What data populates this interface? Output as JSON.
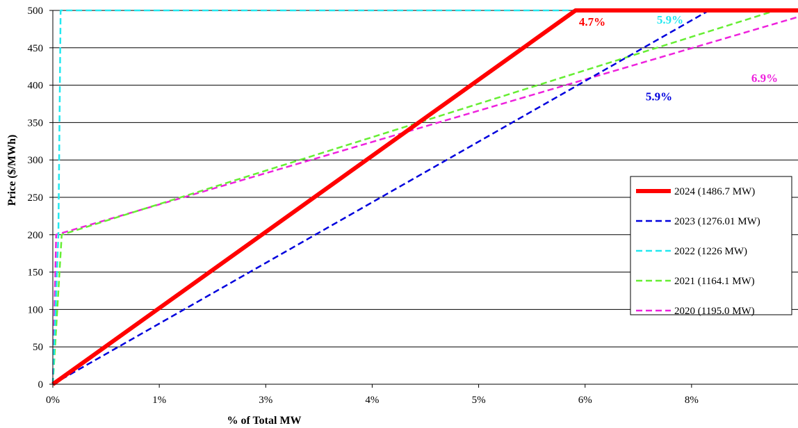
{
  "chart_data": {
    "type": "line",
    "xlabel": "% of Total MW",
    "ylabel": "Price ($/MWh)",
    "x_ticks": [
      "0%",
      "1%",
      "3%",
      "4%",
      "5%",
      "6%",
      "8%"
    ],
    "y_ticks": [
      "0",
      "50",
      "100",
      "150",
      "200",
      "250",
      "300",
      "350",
      "400",
      "450",
      "500"
    ],
    "xlim": [
      0,
      6.7
    ],
    "ylim": [
      0,
      500
    ],
    "grid": "horizontal",
    "legend_position": "right",
    "series": [
      {
        "name": "2024 (1486.7 MW)",
        "color": "#ff0000",
        "dash": "solid",
        "width": 6,
        "x": [
          0,
          4.7,
          6.7
        ],
        "y": [
          0,
          500,
          500
        ]
      },
      {
        "name": "2023 (1276.01 MW)",
        "color": "#0000dd",
        "dash": "dashed",
        "width": 2.5,
        "x": [
          0,
          5.9,
          6.7
        ],
        "y": [
          0,
          500,
          500
        ]
      },
      {
        "name": "2022 (1226 MW)",
        "color": "#22e8f0",
        "dash": "dashed",
        "width": 2.5,
        "x": [
          0,
          0.05,
          0.07,
          6.7
        ],
        "y": [
          0,
          200,
          500,
          500
        ]
      },
      {
        "name": "2021 (1164.1 MW)",
        "color": "#66ee33",
        "dash": "dashed",
        "width": 2.5,
        "x": [
          0,
          0.08,
          6.5,
          6.7
        ],
        "y": [
          0,
          200,
          500,
          500
        ]
      },
      {
        "name": "2020 (1195.0 MW)",
        "color": "#ee22dd",
        "dash": "dashed",
        "width": 2.5,
        "x": [
          0,
          0.03,
          6.9,
          6.7
        ],
        "y": [
          0,
          200,
          500,
          500
        ]
      }
    ],
    "annotations": [
      {
        "text": "4.7%",
        "color": "#ff0000",
        "x": 4.85,
        "y": 485
      },
      {
        "text": "5.9%",
        "color": "#22e8f0",
        "x": 5.55,
        "y": 488
      },
      {
        "text": "6.9%",
        "color": "#ee22dd",
        "x": 6.4,
        "y": 410
      },
      {
        "text": "5.9%",
        "color": "#0000dd",
        "x": 5.45,
        "y": 385
      }
    ]
  }
}
